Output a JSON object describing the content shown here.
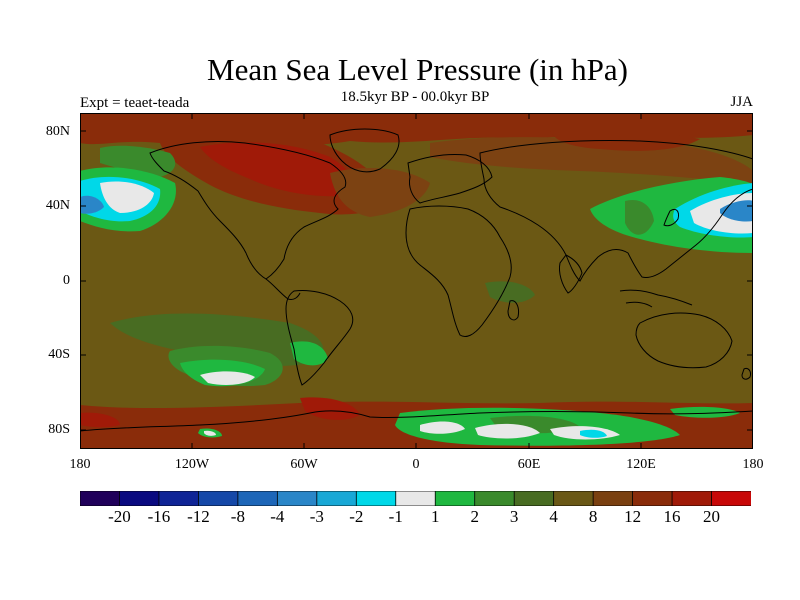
{
  "title": "Mean Sea Level Pressure (in hPa)",
  "subtitle": "18.5kyr BP - 00.0kyr BP",
  "left_label": "Expt = teaet-teada",
  "right_label": "JJA",
  "axes": {
    "y_ticks": [
      "80N",
      "40N",
      "0",
      "40S",
      "80S"
    ],
    "x_ticks": [
      "180",
      "120W",
      "60W",
      "0",
      "60E",
      "120E",
      "180"
    ]
  },
  "colorbar": {
    "colors": [
      "#20005a",
      "#0a0a80",
      "#0f2496",
      "#1548a8",
      "#1d66b8",
      "#2a86c8",
      "#18a8d6",
      "#00d8e8",
      "#e8e8e8",
      "#1fb840",
      "#3a8a2c",
      "#486c22",
      "#6a5816",
      "#7a4010",
      "#8a2c0a",
      "#a01a08",
      "#c80808"
    ],
    "labels": [
      "-20",
      "-16",
      "-12",
      "-8",
      "-4",
      "-3",
      "-2",
      "-1",
      "1",
      "2",
      "3",
      "4",
      "8",
      "12",
      "16",
      "20"
    ]
  },
  "palette": {
    "base": "#6b5814",
    "red1": "#7c4212",
    "red2": "#8a2c0a",
    "red3": "#a01a08",
    "green_dark": "#486c22",
    "green": "#3a8a2c",
    "green_bright": "#1fb840",
    "cyan": "#00d8e8",
    "white": "#e8e8e8",
    "blue": "#1d66b8"
  }
}
